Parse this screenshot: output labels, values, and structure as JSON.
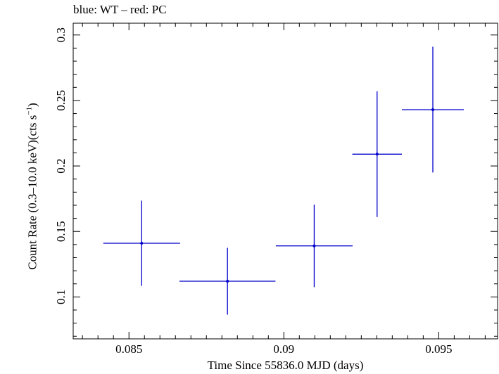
{
  "chart_data": {
    "type": "scatter",
    "title": "blue: WT – red: PC",
    "xlabel": "Time Since 55836.0 MJD (days)",
    "ylabel_main": "Count Rate (0.3–10.0 keV)(cts s",
    "ylabel_sup": "−1",
    "ylabel_close": ")",
    "xlim": [
      0.0832,
      0.0969
    ],
    "ylim": [
      0.068,
      0.309
    ],
    "x_ticks": [
      {
        "value": 0.085,
        "label": "0.085"
      },
      {
        "value": 0.09,
        "label": "0.09"
      },
      {
        "value": 0.095,
        "label": "0.095"
      }
    ],
    "y_ticks": [
      {
        "value": 0.1,
        "label": "0.1"
      },
      {
        "value": 0.15,
        "label": "0.15"
      },
      {
        "value": 0.2,
        "label": "0.2"
      },
      {
        "value": 0.25,
        "label": "0.25"
      },
      {
        "value": 0.3,
        "label": "0.3"
      }
    ],
    "series": [
      {
        "color": "#0000cc",
        "points": [
          {
            "x": 0.08541,
            "y": 0.141,
            "xerr": 0.00124,
            "yerr": 0.0325
          },
          {
            "x": 0.08818,
            "y": 0.112,
            "xerr": 0.00155,
            "yerr": 0.0255
          },
          {
            "x": 0.09098,
            "y": 0.139,
            "xerr": 0.00124,
            "yerr": 0.0315
          },
          {
            "x": 0.09301,
            "y": 0.209,
            "xerr": 0.0008,
            "yerr": 0.048
          },
          {
            "x": 0.09481,
            "y": 0.243,
            "xerr": 0.001,
            "yerr": 0.048
          }
        ]
      }
    ]
  }
}
